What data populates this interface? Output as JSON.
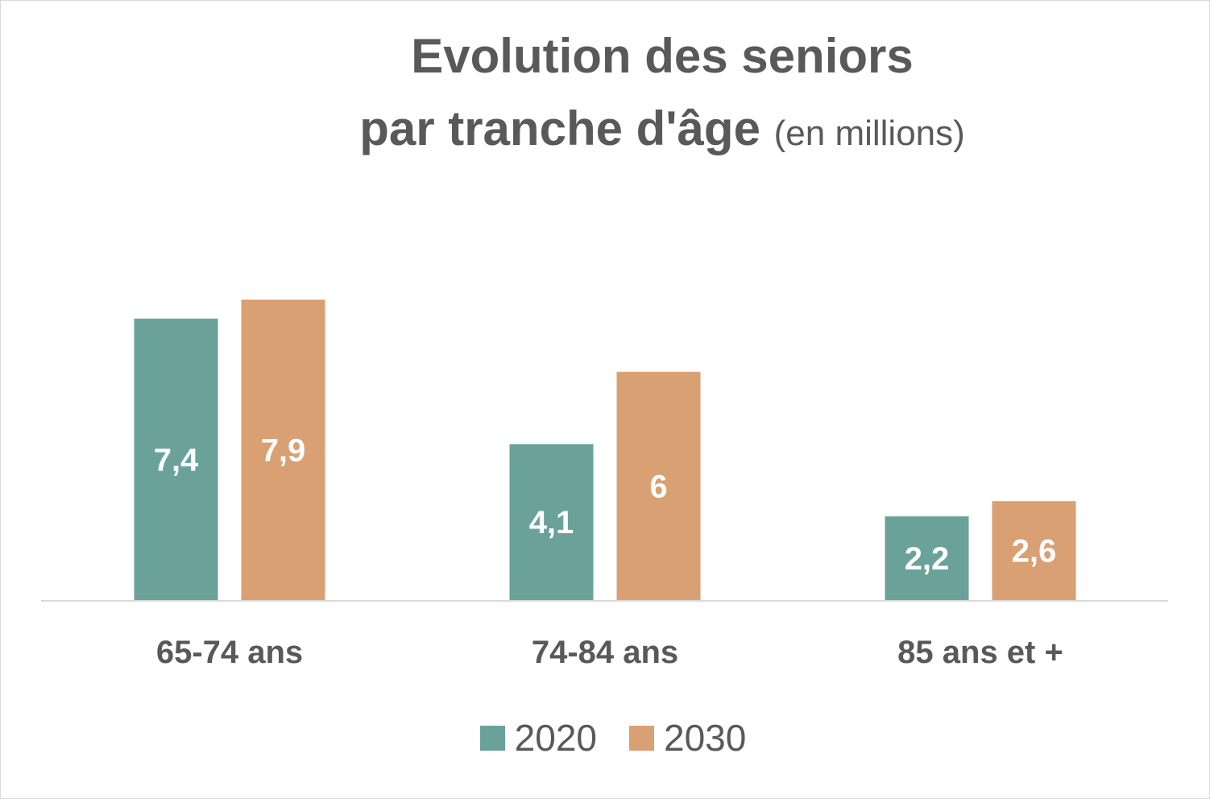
{
  "title": {
    "line1": "Evolution des seniors",
    "line2_main": "par tranche d'âge",
    "line2_sub": "(en millions)"
  },
  "chart_data": {
    "type": "bar",
    "categories": [
      "65-74 ans",
      "74-84 ans",
      "85 ans et +"
    ],
    "series": [
      {
        "name": "2020",
        "values": [
          7.4,
          4.1,
          2.2
        ],
        "labels": [
          "7,4",
          "4,1",
          "2,2"
        ],
        "color": "#6aa29a"
      },
      {
        "name": "2030",
        "values": [
          7.9,
          6,
          2.6
        ],
        "labels": [
          "7,9",
          "6",
          "2,6"
        ],
        "color": "#d9a073"
      }
    ],
    "title": "Evolution des seniors par tranche d'âge (en millions)",
    "ylim": [
      0,
      7.9
    ],
    "grid": false,
    "legend_position": "bottom"
  },
  "colors": {
    "text": "#595959",
    "axis": "#d9d9d9",
    "label": "#ffffff"
  }
}
